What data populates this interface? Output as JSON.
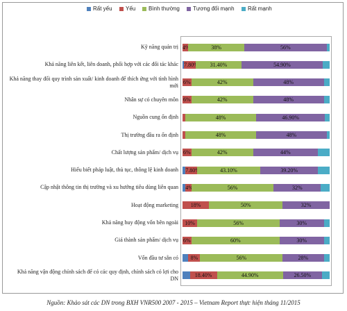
{
  "chart_data": {
    "type": "stacked-bar-horizontal",
    "categories": [
      "Kỹ năng quản trị",
      "Khả năng liên kết, liên doanh, phối hợp với các đối tác khác",
      "Khả năng thay đổi quy trình sản xuất/ kinh doanh để thích ứng với tình hình mới",
      "Nhân sự có chuyên môn",
      "Nguồn cung ổn định",
      "Thị trường đầu ra ổn định",
      "Chất lượng sản phẩm/ dịch vụ",
      "Hiểu biết pháp luật, thủ tục, thông lệ kinh doanh",
      "Cập nhật thông tin thị trường và xu hướng tiêu dùng liên quan",
      "Hoạt động marketing",
      "Khả năng huy động vốn bên ngoài",
      "Giá thành sản phẩm/ dịch vụ",
      "Vốn đầu tư sẵn có",
      "Khả năng vận động chính sách để có các quy định, chính sách có lợi cho DN"
    ],
    "series": [
      {
        "name": "Rất yếu",
        "color": "#4f81bd",
        "values": [
          0,
          1,
          0,
          0,
          0,
          0,
          0,
          2,
          2,
          0,
          0,
          0,
          4,
          5
        ],
        "value_labels": [
          null,
          null,
          null,
          null,
          null,
          null,
          null,
          null,
          null,
          null,
          null,
          null,
          null,
          null
        ]
      },
      {
        "name": "Yếu",
        "color": "#c0504d",
        "values": [
          4,
          7.8,
          6,
          6,
          2,
          2,
          6,
          7.8,
          4,
          18,
          10,
          6,
          8,
          18.4
        ],
        "value_labels": [
          "4%",
          "7.80%",
          "6%",
          "6%",
          null,
          null,
          "6%",
          "7.80%",
          "4%",
          "18%",
          "10%",
          "6%",
          "8%",
          "18.40%"
        ]
      },
      {
        "name": "Bình thường",
        "color": "#9bbb59",
        "values": [
          38,
          31.4,
          42,
          42,
          48,
          48,
          42,
          43.1,
          56,
          50,
          56,
          60,
          56,
          44.9
        ],
        "value_labels": [
          "38%",
          "31.40%",
          "42%",
          "42%",
          "48%",
          "48%",
          "42%",
          "43.10%",
          "56%",
          "50%",
          "56%",
          "60%",
          "56%",
          "44.90%"
        ]
      },
      {
        "name": "Tương đối mạnh",
        "color": "#8064a2",
        "values": [
          56,
          54.9,
          48,
          48,
          46.9,
          48,
          44,
          39.2,
          32,
          32,
          30,
          30,
          28,
          26.5
        ],
        "value_labels": [
          "56%",
          "54.90%",
          "48%",
          "48%",
          "46.90%",
          "48%",
          "44%",
          "39.20%",
          "32%",
          "32%",
          "30%",
          "30%",
          "28%",
          "26.50%"
        ]
      },
      {
        "name": "Rất mạnh",
        "color": "#4bacc6",
        "values": [
          2,
          4.9,
          4,
          4,
          3.1,
          2,
          8,
          7.9,
          6,
          0,
          4,
          4,
          4,
          5.2
        ],
        "value_labels": [
          null,
          null,
          null,
          null,
          null,
          null,
          null,
          null,
          null,
          null,
          null,
          null,
          null,
          null
        ]
      }
    ],
    "xlim": [
      0,
      100
    ],
    "source": "Nguồn: Khảo sát các DN trong BXH VNR500 2007 - 2015 – Vietnam Report thực hiện tháng 11/2015"
  }
}
